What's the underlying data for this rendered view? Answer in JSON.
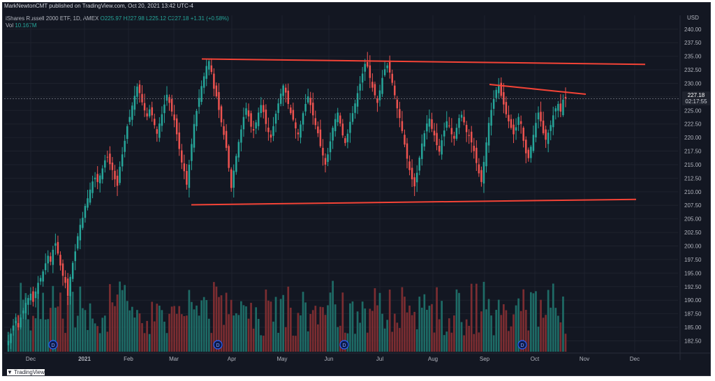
{
  "header": {
    "publisher": "MarkNewtonCMT published on TradingView.com, Oct 20, 2021 13:42 UTC-4"
  },
  "legend": {
    "title": "iShares Russell 2000 ETF, 1D, AMEX",
    "open_label": "O",
    "open": "225.97",
    "high_label": "H",
    "high": "227.98",
    "low_label": "L",
    "low": "225.12",
    "close_label": "C",
    "close": "227.18",
    "change": "+1.31 (+0.58%)",
    "vol_label": "Vol",
    "vol": "10.167M"
  },
  "price_tag": {
    "price": "227.18",
    "countdown": "02:17:55"
  },
  "footer": {
    "brand": "TradingView"
  },
  "colors": {
    "background": "#131722",
    "up": "#26a69a",
    "down": "#ef5350",
    "vol_up": "#1e6b66",
    "vol_down": "#7b2d31",
    "trendline": "#f44336",
    "text": "#b2b5be",
    "grid": "#1e222d",
    "earnings": "#2962ff"
  },
  "chart_data": {
    "type": "candlestick",
    "currency": "USD",
    "y_axis": {
      "ticks": [
        "240.00",
        "237.50",
        "235.00",
        "232.50",
        "230.00",
        "227.50",
        "225.00",
        "222.50",
        "220.00",
        "217.50",
        "215.00",
        "212.50",
        "210.00",
        "207.50",
        "205.00",
        "202.50",
        "200.00",
        "197.50",
        "195.00",
        "192.50",
        "190.00",
        "187.50",
        "185.00",
        "182.50"
      ],
      "ylim": [
        180.5,
        241
      ]
    },
    "x_axis": {
      "ticks": [
        "Dec",
        "2021",
        "Feb",
        "Mar",
        "Apr",
        "May",
        "Jun",
        "Jul",
        "Aug",
        "Sep",
        "Oct",
        "Nov",
        "Dec"
      ]
    },
    "last_price": 227.18,
    "earnings_markers": [
      "Dec",
      "Mar",
      "Jun",
      "Sep"
    ],
    "earnings_marker_label": "D",
    "trendlines": [
      {
        "name": "upper-resistance",
        "from": [
          "Mar",
          234.5
        ],
        "to": [
          "Dec",
          233.5
        ]
      },
      {
        "name": "lower-support",
        "from": [
          "Mar",
          207.6
        ],
        "to": [
          "Dec",
          208.6
        ]
      },
      {
        "name": "descending-resistance",
        "from": [
          "Sep",
          229.8
        ],
        "to": [
          "Nov",
          228.0
        ]
      }
    ],
    "closes": [
      182.5,
      183.8,
      185.3,
      186.2,
      185.0,
      186.8,
      188.1,
      189.5,
      190.4,
      191.2,
      189.7,
      191.6,
      193.2,
      194.1,
      195.3,
      196.8,
      198.2,
      197.1,
      199.3,
      200.5,
      198.6,
      196.4,
      194.5,
      193.2,
      190.8,
      194.3,
      196.9,
      199.0,
      201.8,
      203.9,
      205.2,
      207.4,
      208.8,
      210.4,
      211.9,
      212.6,
      211.8,
      213.0,
      214.3,
      215.8,
      216.4,
      215.1,
      214.0,
      212.3,
      211.1,
      214.6,
      216.9,
      219.4,
      222.1,
      223.8,
      225.9,
      227.7,
      229.4,
      228.2,
      226.5,
      225.0,
      223.9,
      225.2,
      224.1,
      222.3,
      220.7,
      222.6,
      224.3,
      226.1,
      227.9,
      226.4,
      224.8,
      223.2,
      220.6,
      217.9,
      215.4,
      213.8,
      211.3,
      215.0,
      218.8,
      222.5,
      224.9,
      227.3,
      229.5,
      231.3,
      233.2,
      234.1,
      232.1,
      229.0,
      227.6,
      225.1,
      222.8,
      220.5,
      218.1,
      214.4,
      210.7,
      213.9,
      216.6,
      219.2,
      221.5,
      223.8,
      225.4,
      223.9,
      222.0,
      221.3,
      222.8,
      224.6,
      226.0,
      224.7,
      222.5,
      221.0,
      220.0,
      222.1,
      224.4,
      226.3,
      228.1,
      229.6,
      228.3,
      226.2,
      224.5,
      223.3,
      221.7,
      220.6,
      222.4,
      224.5,
      226.2,
      227.6,
      226.0,
      224.1,
      222.3,
      220.8,
      218.4,
      216.7,
      215.0,
      216.9,
      219.3,
      221.8,
      223.4,
      224.6,
      222.6,
      220.4,
      219.0,
      220.7,
      222.9,
      224.5,
      226.3,
      228.2,
      229.9,
      231.8,
      233.6,
      233.1,
      231.0,
      229.2,
      227.8,
      226.4,
      228.7,
      231.0,
      232.6,
      233.3,
      232.0,
      230.1,
      227.8,
      225.4,
      223.6,
      221.2,
      218.7,
      216.1,
      214.0,
      212.3,
      211.0,
      213.5,
      216.3,
      218.9,
      220.8,
      222.6,
      223.5,
      221.6,
      220.4,
      218.6,
      217.4,
      219.5,
      221.3,
      223.0,
      222.1,
      220.6,
      219.8,
      221.8,
      223.6,
      224.2,
      222.8,
      221.0,
      220.3,
      219.1,
      217.5,
      215.3,
      213.4,
      211.8,
      215.5,
      219.1,
      222.7,
      225.1,
      227.1,
      228.8,
      229.5,
      227.7,
      226.1,
      224.3,
      223.0,
      221.8,
      220.6,
      221.9,
      223.8,
      222.5,
      219.4,
      217.1,
      216.2,
      218.3,
      220.5,
      222.7,
      224.6,
      223.0,
      220.8,
      219.6,
      220.9,
      222.3,
      224.1,
      225.4,
      226.2,
      224.8,
      227.0,
      227.18
    ]
  }
}
